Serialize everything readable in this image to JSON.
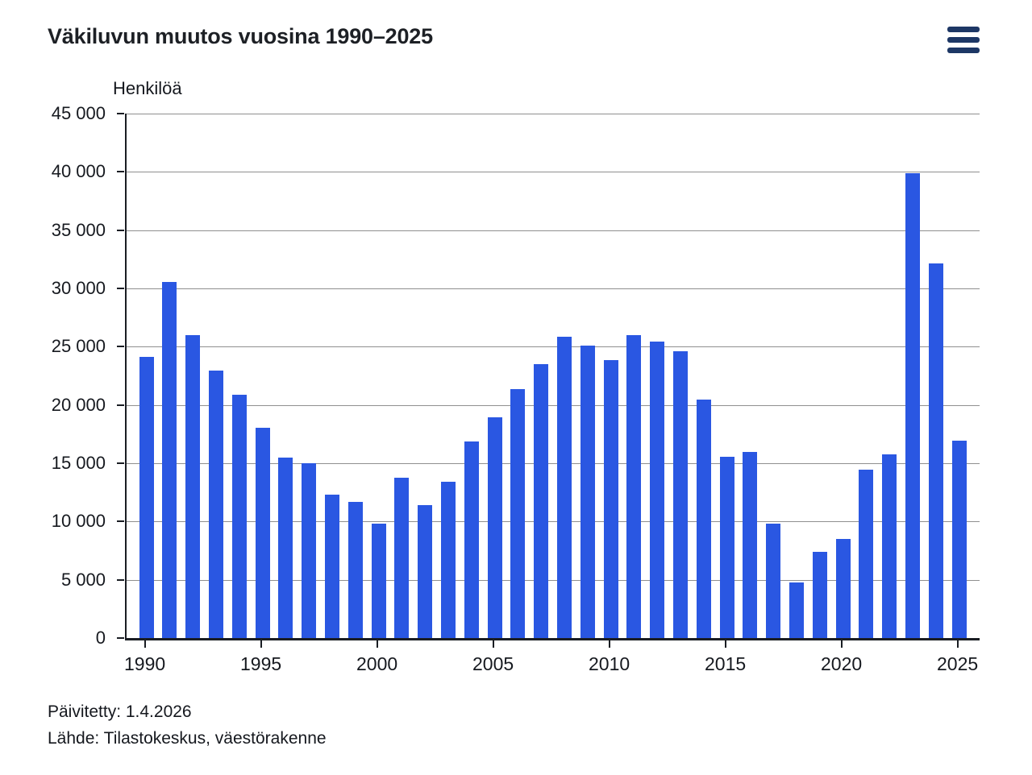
{
  "header": {
    "title": "Väkiluvun muutos vuosina 1990–2025",
    "menu_icon": "hamburger-menu"
  },
  "footer": {
    "updated": "Päivitetty: 1.4.2026",
    "source": "Lähde: Tilastokeskus, väestörakenne"
  },
  "colors": {
    "bar": "#2a57e2",
    "axis": "#1a1d23",
    "gridline": "#8f8f8f",
    "menu_icon": "#1d3765"
  },
  "chart_data": {
    "type": "bar",
    "title": "Väkiluvun muutos vuosina 1990–2025",
    "unit_label": "Henkilöä",
    "xlabel": "",
    "ylabel": "Henkilöä",
    "x": [
      1990,
      1991,
      1992,
      1993,
      1994,
      1995,
      1996,
      1997,
      1998,
      1999,
      2000,
      2001,
      2002,
      2003,
      2004,
      2005,
      2006,
      2007,
      2008,
      2009,
      2010,
      2011,
      2012,
      2013,
      2014,
      2015,
      2016,
      2017,
      2018,
      2019,
      2020,
      2021,
      2022,
      2023,
      2024,
      2025
    ],
    "values": [
      24095,
      30524,
      25980,
      22930,
      20842,
      18072,
      15494,
      15029,
      12297,
      11656,
      9813,
      13786,
      11394,
      13437,
      16879,
      18969,
      21375,
      23529,
      25830,
      25113,
      23849,
      25991,
      25407,
      24596,
      20483,
      15555,
      15989,
      9833,
      4789,
      7373,
      8501,
      14448,
      15729,
      39881,
      32120,
      16950
    ],
    "ylim": [
      0,
      45000
    ],
    "ytick_step": 5000,
    "ytick_labels": [
      "0",
      "5 000",
      "10 000",
      "15 000",
      "20 000",
      "25 000",
      "30 000",
      "35 000",
      "40 000",
      "45 000"
    ],
    "xtick_years": [
      1990,
      1995,
      2000,
      2005,
      2010,
      2015,
      2020,
      2025
    ],
    "grid": true,
    "legend": false,
    "bar_color": "#2a57e2"
  }
}
